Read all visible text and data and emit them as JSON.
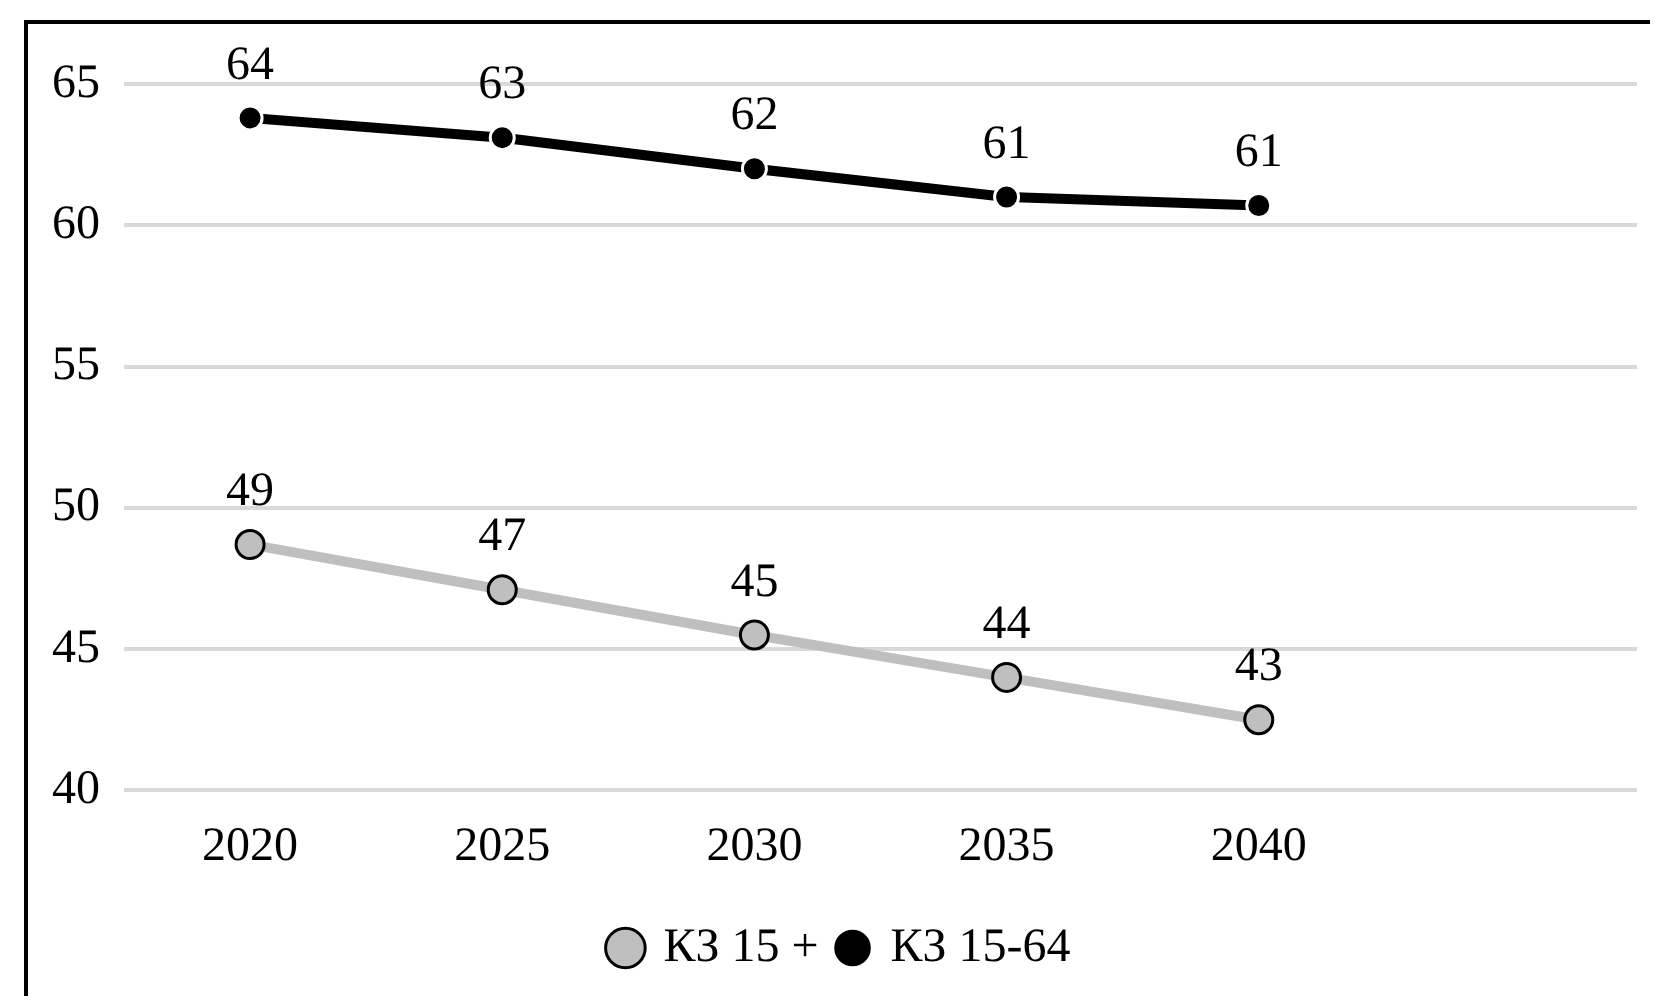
{
  "chart_data": {
    "type": "line",
    "categories": [
      "2020",
      "2025",
      "2030",
      "2035",
      "2040",
      null
    ],
    "series": [
      {
        "name": "КЗ 15 +",
        "color": "#bfbfbf",
        "values": [
          48.7,
          47.1,
          45.5,
          44.0,
          42.5,
          null
        ],
        "value_labels": [
          "49",
          "47",
          "45",
          "44",
          "43",
          null
        ]
      },
      {
        "name": "КЗ 15-64",
        "color": "#000000",
        "values": [
          63.8,
          63.1,
          62.0,
          61.0,
          60.7,
          null
        ],
        "value_labels": [
          "64",
          "63",
          "62",
          "61",
          "61",
          null
        ]
      }
    ],
    "ylim": [
      40,
      65
    ],
    "yticks": [
      40,
      45,
      50,
      55,
      60,
      65
    ],
    "grid": "y",
    "legend": "bottom",
    "marker": "circle",
    "line_style": "solid"
  }
}
